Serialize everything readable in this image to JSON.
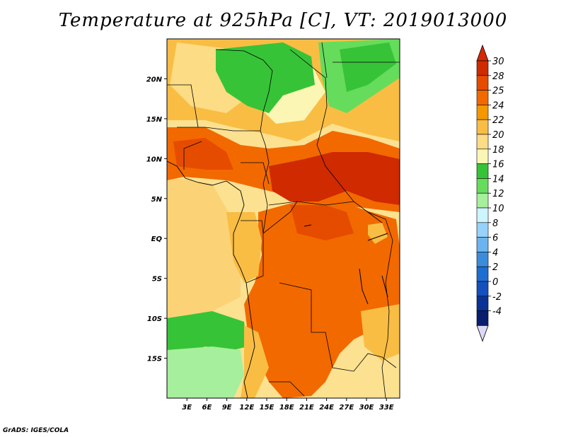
{
  "title": "Temperature at 925hPa [C], VT: 2019013000",
  "credit": "GrADS: IGES/COLA",
  "map": {
    "lon_range": [
      0,
      35
    ],
    "lat_range": [
      -20,
      25
    ],
    "x_ticks": [
      {
        "value": 3,
        "label": "3E"
      },
      {
        "value": 6,
        "label": "6E"
      },
      {
        "value": 9,
        "label": "9E"
      },
      {
        "value": 12,
        "label": "12E"
      },
      {
        "value": 15,
        "label": "15E"
      },
      {
        "value": 18,
        "label": "18E"
      },
      {
        "value": 21,
        "label": "21E"
      },
      {
        "value": 24,
        "label": "24E"
      },
      {
        "value": 27,
        "label": "27E"
      },
      {
        "value": 30,
        "label": "30E"
      },
      {
        "value": 33,
        "label": "33E"
      }
    ],
    "y_ticks": [
      {
        "value": 20,
        "label": "20N"
      },
      {
        "value": 15,
        "label": "15N"
      },
      {
        "value": 10,
        "label": "10N"
      },
      {
        "value": 5,
        "label": "5N"
      },
      {
        "value": 0,
        "label": "EQ"
      },
      {
        "value": -5,
        "label": "5S"
      },
      {
        "value": -10,
        "label": "10S"
      },
      {
        "value": -15,
        "label": "15S"
      }
    ]
  },
  "colorbar": {
    "labels": [
      "30",
      "28",
      "25",
      "24",
      "22",
      "20",
      "18",
      "16",
      "14",
      "12",
      "10",
      "8",
      "6",
      "4",
      "2",
      "0",
      "-2",
      "-4"
    ],
    "colors": [
      "#cf2a00",
      "#e64c00",
      "#f26900",
      "#f59700",
      "#f9bd44",
      "#fcdc84",
      "#fcf6b4",
      "#37c337",
      "#66dc5c",
      "#a6ef9c",
      "#cdf5ff",
      "#96d2fa",
      "#6ab4f0",
      "#3c8cdc",
      "#1e6ed2",
      "#1450be",
      "#0a3296",
      "#0a1e6e"
    ],
    "top_triangle_color": "#d62900",
    "bottom_triangle_color": "#dcd8f8"
  },
  "palette": {
    "ocean": "#fce190",
    "land_hot": "#e64c00",
    "land_very_hot": "#cf2a00",
    "land_warm": "#f26900",
    "land_mild": "#f9bd44",
    "green": "#37c337",
    "light_green": "#66dc5c",
    "pale_green": "#a6ef9c"
  }
}
